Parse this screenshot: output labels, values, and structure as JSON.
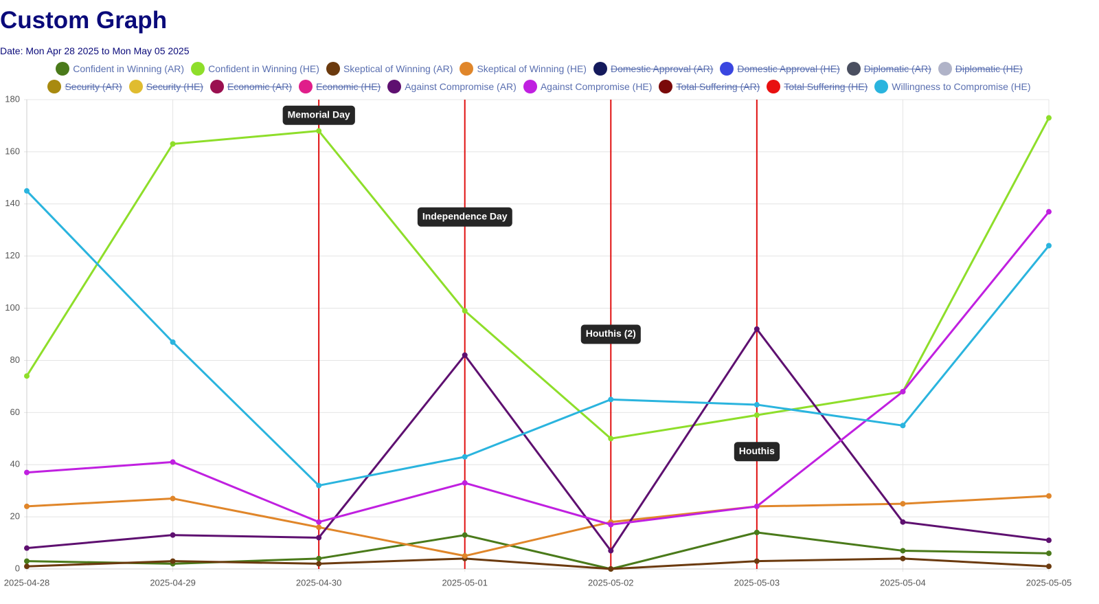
{
  "chart_data": {
    "type": "line",
    "title": "Custom Graph",
    "subtitle": "Date: Mon Apr 28 2025 to Mon May 05 2025",
    "categories": [
      "2025-04-28",
      "2025-04-29",
      "2025-04-30",
      "2025-05-01",
      "2025-05-02",
      "2025-05-03",
      "2025-05-04",
      "2025-05-05"
    ],
    "ylim": [
      0,
      180
    ],
    "yticks": [
      0,
      20,
      40,
      60,
      80,
      100,
      120,
      140,
      160,
      180
    ],
    "grid": true,
    "series": [
      {
        "name": "Confident in Winning (AR)",
        "color": "#4a7a1a",
        "values": [
          3,
          2,
          4,
          13,
          0,
          14,
          7,
          6
        ]
      },
      {
        "name": "Confident in Winning (HE)",
        "color": "#8ede2a",
        "values": [
          74,
          163,
          168,
          99,
          50,
          59,
          68,
          173
        ]
      },
      {
        "name": "Skeptical of Winning (AR)",
        "color": "#6b3a0e",
        "values": [
          1,
          3,
          2,
          4,
          0,
          3,
          4,
          1
        ]
      },
      {
        "name": "Skeptical of Winning (HE)",
        "color": "#e0862a",
        "values": [
          24,
          27,
          16,
          5,
          18,
          24,
          25,
          28
        ]
      },
      {
        "name": "Domestic Approval (AR)",
        "color": "#141a5c",
        "hidden": true
      },
      {
        "name": "Domestic Approval (HE)",
        "color": "#3a46e0",
        "hidden": true
      },
      {
        "name": "Diplomatic (AR)",
        "color": "#4a4f60",
        "hidden": true
      },
      {
        "name": "Diplomatic (HE)",
        "color": "#b0b3c8",
        "hidden": true
      },
      {
        "name": "Security (AR)",
        "color": "#a88a10",
        "hidden": true
      },
      {
        "name": "Security (HE)",
        "color": "#e0bc30",
        "hidden": true
      },
      {
        "name": "Economic (AR)",
        "color": "#9a1050",
        "hidden": true
      },
      {
        "name": "Economic (HE)",
        "color": "#e01e8a",
        "hidden": true
      },
      {
        "name": "Against Compromise (AR)",
        "color": "#5e1070",
        "values": [
          8,
          13,
          12,
          82,
          7,
          92,
          18,
          11
        ]
      },
      {
        "name": "Against Compromise (HE)",
        "color": "#c020e0",
        "values": [
          37,
          41,
          18,
          33,
          17,
          24,
          68,
          137
        ]
      },
      {
        "name": "Total Suffering (AR)",
        "color": "#7a0a0a",
        "hidden": true
      },
      {
        "name": "Total Suffering (HE)",
        "color": "#e81010",
        "hidden": true
      },
      {
        "name": "Willingness to Compromise (HE)",
        "color": "#2ab4de",
        "values": [
          145,
          87,
          32,
          43,
          65,
          63,
          55,
          124
        ]
      }
    ],
    "annotations": [
      {
        "x": "2025-04-30",
        "y": 174,
        "label": "Memorial Day"
      },
      {
        "x": "2025-05-01",
        "y": 135,
        "label": "Independence Day"
      },
      {
        "x": "2025-05-02",
        "y": 90,
        "label": "Houthis (2)"
      },
      {
        "x": "2025-05-03",
        "y": 45,
        "label": "Houthis"
      }
    ]
  }
}
